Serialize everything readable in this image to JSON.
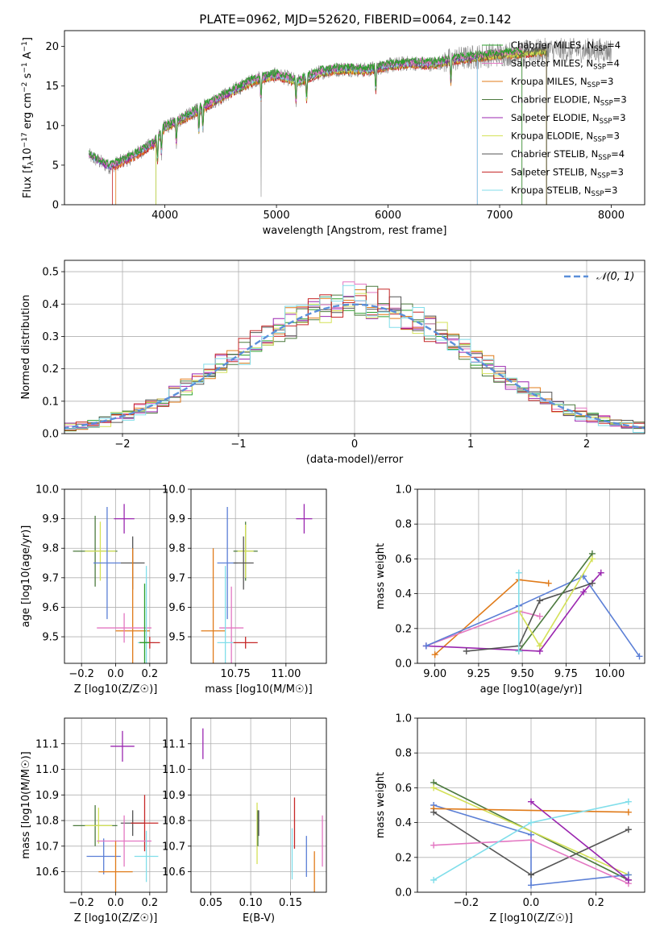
{
  "figure_title": "PLATE=0962, MJD=52620, FIBERID=0064, z=0.142",
  "colors": {
    "Chabrier_MILES": "#2ca02c",
    "Salpeter_MILES": "#e377c2",
    "Kroupa_MILES": "#e07b1a",
    "Chabrier_ELODIE": "#4c7a3e",
    "Salpeter_ELODIE": "#9b27b0",
    "Kroupa_ELODIE": "#d4e157",
    "Chabrier_STELIB": "#555555",
    "Salpeter_STELIB": "#c62828",
    "Kroupa_STELIB": "#80deea",
    "normal": "#5b8fd9",
    "mass_blue": "#5b7fd6"
  },
  "chart_data": [
    {
      "type": "line",
      "id": "spectrum",
      "xlabel": "wavelength [Angstrom, rest frame]",
      "ylabel": "Flux [f_λ 10^-17 erg cm^-2 s^-1 A^-1]",
      "xlim": [
        3100,
        8300
      ],
      "ylim": [
        0,
        22
      ],
      "xticks": [
        4000,
        5000,
        6000,
        7000,
        8000
      ],
      "yticks": [
        0,
        5,
        10,
        15,
        20
      ],
      "legend_position": "top-right",
      "legend": [
        {
          "label": "Chabrier MILES, N",
          "sub": "SSP",
          "suffix": "=4",
          "color_key": "Chabrier_MILES"
        },
        {
          "label": "Salpeter MILES, N",
          "sub": "SSP",
          "suffix": "=4",
          "color_key": "Salpeter_MILES"
        },
        {
          "label": "Kroupa MILES, N",
          "sub": "SSP",
          "suffix": "=3",
          "color_key": "Kroupa_MILES"
        },
        {
          "label": "Chabrier ELODIE, N",
          "sub": "SSP",
          "suffix": "=3",
          "color_key": "Chabrier_ELODIE"
        },
        {
          "label": "Salpeter ELODIE, N",
          "sub": "SSP",
          "suffix": "=3",
          "color_key": "Salpeter_ELODIE"
        },
        {
          "label": "Kroupa ELODIE, N",
          "sub": "SSP",
          "suffix": "=3",
          "color_key": "Kroupa_ELODIE"
        },
        {
          "label": "Chabrier STELIB, N",
          "sub": "SSP",
          "suffix": "=4",
          "color_key": "Chabrier_STELIB"
        },
        {
          "label": "Salpeter STELIB, N",
          "sub": "SSP",
          "suffix": "=3",
          "color_key": "Salpeter_STELIB"
        },
        {
          "label": "Kroupa STELIB, N",
          "sub": "SSP",
          "suffix": "=3",
          "color_key": "Kroupa_STELIB"
        }
      ],
      "continuum": {
        "x": [
          3320,
          3500,
          3700,
          3900,
          4000,
          4200,
          4400,
          4600,
          4800,
          5000,
          5200,
          5400,
          5600,
          5800,
          6000,
          6200,
          6400,
          6600,
          6800,
          7000,
          7200,
          7420
        ],
        "y": [
          6.2,
          4.8,
          6.0,
          7.8,
          9.8,
          11.2,
          12.8,
          14.3,
          15.8,
          16.4,
          15.6,
          16.8,
          17.2,
          17.0,
          17.6,
          17.9,
          17.8,
          18.4,
          18.7,
          19.0,
          19.2,
          19.5
        ]
      },
      "absorption_lines": [
        3934,
        3969,
        4102,
        4304,
        4340,
        4861,
        5175,
        5270,
        5890,
        6563
      ],
      "series_ranges": [
        {
          "color_key": "Salpeter_STELIB",
          "x_end": 7420,
          "drop_start": 3530
        },
        {
          "color_key": "Kroupa_MILES",
          "x_end": 7420,
          "drop_start": 3560
        },
        {
          "color_key": "Chabrier_ELODIE",
          "x_end": 7420,
          "drop_start": 3920
        },
        {
          "color_key": "Kroupa_ELODIE",
          "x_end": 7420,
          "drop_start": 3920
        },
        {
          "color_key": "Salpeter_ELODIE",
          "x_end": 6800
        },
        {
          "color_key": "Kroupa_STELIB",
          "x_end": 6800
        },
        {
          "color_key": "Chabrier_STELIB",
          "x_end": 7420
        },
        {
          "color_key": "Salpeter_MILES",
          "x_end": 7200
        },
        {
          "color_key": "Chabrier_MILES",
          "x_end": 7200
        }
      ]
    },
    {
      "type": "histogram",
      "id": "residuals",
      "xlabel": "(data-model)/error",
      "ylabel": "Normed distribution",
      "xlim": [
        -2.5,
        2.5
      ],
      "ylim": [
        0,
        0.535
      ],
      "xticks": [
        -2,
        -1,
        0,
        1,
        2
      ],
      "yticks": [
        0.0,
        0.1,
        0.2,
        0.3,
        0.4,
        0.5
      ],
      "grid": true,
      "legend_position": "top-right",
      "legend_label": "𝒩(0, 1)",
      "bin_width": 0.1
    },
    {
      "type": "scatter",
      "id": "age_vs_Z",
      "xlabel": "Z [log10(Z/Z☉)]",
      "ylabel": "age [log10(age/yr)]",
      "xlim": [
        -0.3,
        0.3
      ],
      "ylim": [
        9.41,
        10.0
      ],
      "xticks": [
        -0.2,
        0.0,
        0.2
      ],
      "yticks": [
        9.5,
        9.6,
        9.7,
        9.8,
        9.9,
        10.0
      ],
      "grid": true,
      "points": [
        {
          "color_key": "Chabrier_ELODIE",
          "x": -0.12,
          "xerr": 0.13,
          "y": 9.79,
          "yerr": 0.12
        },
        {
          "color_key": "Kroupa_ELODIE",
          "x": -0.09,
          "xerr": 0.09,
          "y": 9.79,
          "yerr": 0.1
        },
        {
          "color_key": "mass_blue",
          "x": -0.05,
          "xerr": 0.08,
          "y": 9.75,
          "yerr": 0.19
        },
        {
          "color_key": "Salpeter_ELODIE",
          "x": 0.05,
          "xerr": 0.06,
          "y": 9.9,
          "yerr": 0.05
        },
        {
          "color_key": "Chabrier_STELIB",
          "x": 0.1,
          "xerr": 0.07,
          "y": 9.75,
          "yerr": 0.09
        },
        {
          "color_key": "Kroupa_MILES",
          "x": 0.1,
          "xerr": 0.1,
          "y": 9.52,
          "yerr": 0.28
        },
        {
          "color_key": "Salpeter_MILES",
          "x": 0.05,
          "xerr": 0.16,
          "y": 9.53,
          "yerr": 0.05
        },
        {
          "color_key": "Kroupa_STELIB",
          "x": 0.18,
          "xerr": 0.05,
          "y": 9.48,
          "yerr": 0.26
        },
        {
          "color_key": "Salpeter_STELIB",
          "x": 0.2,
          "xerr": 0.06,
          "y": 9.48,
          "yerr": 0.02
        },
        {
          "color_key": "Chabrier_MILES",
          "x": 0.17,
          "xerr": 0.03,
          "y": 9.48,
          "yerr": 0.2
        }
      ]
    },
    {
      "type": "scatter",
      "id": "age_vs_mass",
      "xlabel": "mass [log10(M/M☉)]",
      "ylabel": "",
      "xlim": [
        10.53,
        11.2
      ],
      "ylim": [
        9.41,
        10.0
      ],
      "xticks": [
        10.75,
        11.0
      ],
      "yticks": [
        9.5,
        9.6,
        9.7,
        9.8,
        9.9,
        10.0
      ],
      "grid": true,
      "points": [
        {
          "color_key": "Chabrier_ELODIE",
          "x": 10.8,
          "xerr": 0.06,
          "y": 9.79,
          "yerr": 0.1
        },
        {
          "color_key": "Kroupa_ELODIE",
          "x": 10.8,
          "xerr": 0.04,
          "y": 9.79,
          "yerr": 0.09
        },
        {
          "color_key": "mass_blue",
          "x": 10.71,
          "xerr": 0.05,
          "y": 9.75,
          "yerr": 0.19
        },
        {
          "color_key": "Chabrier_STELIB",
          "x": 10.79,
          "xerr": 0.05,
          "y": 9.75,
          "yerr": 0.09
        },
        {
          "color_key": "Salpeter_ELODIE",
          "x": 11.09,
          "xerr": 0.04,
          "y": 9.9,
          "yerr": 0.05
        },
        {
          "color_key": "Kroupa_MILES",
          "x": 10.64,
          "xerr": 0.06,
          "y": 9.52,
          "yerr": 0.28
        },
        {
          "color_key": "Salpeter_MILES",
          "x": 10.73,
          "xerr": 0.06,
          "y": 9.53,
          "yerr": 0.14
        },
        {
          "color_key": "Kroupa_STELIB",
          "x": 10.7,
          "xerr": 0.04,
          "y": 9.48,
          "yerr": 0.26
        },
        {
          "color_key": "Salpeter_STELIB",
          "x": 10.8,
          "xerr": 0.06,
          "y": 9.48,
          "yerr": 0.02
        }
      ]
    },
    {
      "type": "line",
      "id": "weight_vs_age",
      "xlabel": "age [log10(age/yr)]",
      "ylabel": "mass weight",
      "xlim": [
        8.9,
        10.2
      ],
      "ylim": [
        0,
        1.0
      ],
      "xticks": [
        9.0,
        9.25,
        9.5,
        9.75,
        10.0
      ],
      "yticks": [
        0.0,
        0.2,
        0.4,
        0.6,
        0.8,
        1.0
      ],
      "grid": true,
      "series": [
        {
          "color_key": "Kroupa_MILES",
          "x": [
            9.0,
            9.48,
            9.65
          ],
          "y": [
            0.05,
            0.48,
            0.46
          ]
        },
        {
          "color_key": "Salpeter_MILES",
          "x": [
            8.95,
            9.48,
            9.6
          ],
          "y": [
            0.1,
            0.3,
            0.27
          ]
        },
        {
          "color_key": "Salpeter_ELODIE",
          "x": [
            8.95,
            9.6,
            9.85,
            9.95
          ],
          "y": [
            0.1,
            0.07,
            0.41,
            0.52
          ]
        },
        {
          "color_key": "mass_blue",
          "x": [
            8.95,
            9.48,
            9.85,
            10.17
          ],
          "y": [
            0.1,
            0.33,
            0.5,
            0.04
          ]
        },
        {
          "color_key": "Chabrier_STELIB",
          "x": [
            9.18,
            9.48,
            9.6,
            9.9
          ],
          "y": [
            0.07,
            0.1,
            0.36,
            0.46
          ]
        },
        {
          "color_key": "Chabrier_ELODIE",
          "x": [
            9.48,
            9.9
          ],
          "y": [
            0.07,
            0.63
          ]
        },
        {
          "color_key": "Kroupa_ELODIE",
          "x": [
            9.48,
            9.6,
            9.9
          ],
          "y": [
            0.3,
            0.1,
            0.6
          ]
        },
        {
          "color_key": "Kroupa_STELIB",
          "x": [
            9.48,
            9.48
          ],
          "y": [
            0.07,
            0.52
          ]
        }
      ]
    },
    {
      "type": "scatter",
      "id": "mass_vs_Z",
      "xlabel": "Z [log10(Z/Z☉)]",
      "ylabel": "mass [log10(M/M☉)]",
      "xlim": [
        -0.3,
        0.3
      ],
      "ylim": [
        10.52,
        11.2
      ],
      "xticks": [
        -0.2,
        0.0,
        0.2
      ],
      "yticks": [
        10.6,
        10.7,
        10.8,
        10.9,
        11.0,
        11.1
      ],
      "grid": true,
      "points": [
        {
          "color_key": "Chabrier_ELODIE",
          "x": -0.12,
          "xerr": 0.13,
          "y": 10.78,
          "yerr": 0.08
        },
        {
          "color_key": "Kroupa_ELODIE",
          "x": -0.1,
          "xerr": 0.08,
          "y": 10.78,
          "yerr": 0.07
        },
        {
          "color_key": "mass_blue",
          "x": -0.07,
          "xerr": 0.1,
          "y": 10.66,
          "yerr": 0.07
        },
        {
          "color_key": "Salpeter_ELODIE",
          "x": 0.04,
          "xerr": 0.07,
          "y": 11.09,
          "yerr": 0.06
        },
        {
          "color_key": "Chabrier_STELIB",
          "x": 0.1,
          "xerr": 0.07,
          "y": 10.79,
          "yerr": 0.05
        },
        {
          "color_key": "Salpeter_STELIB",
          "x": 0.17,
          "xerr": 0.08,
          "y": 10.79,
          "yerr": 0.11
        },
        {
          "color_key": "Salpeter_MILES",
          "x": 0.05,
          "xerr": 0.16,
          "y": 10.72,
          "yerr": 0.1
        },
        {
          "color_key": "Kroupa_STELIB",
          "x": 0.18,
          "xerr": 0.07,
          "y": 10.66,
          "yerr": 0.1
        },
        {
          "color_key": "Kroupa_MILES",
          "x": 0.0,
          "xerr": 0.1,
          "y": 10.6,
          "yerr": 0.12
        }
      ]
    },
    {
      "type": "scatter",
      "id": "mass_vs_ebv",
      "xlabel": "E(B-V)",
      "ylabel": "",
      "xlim": [
        0.025,
        0.195
      ],
      "ylim": [
        10.52,
        11.2
      ],
      "xticks": [
        0.05,
        0.1,
        0.15
      ],
      "yticks": [
        10.6,
        10.7,
        10.8,
        10.9,
        11.0,
        11.1
      ],
      "grid": true,
      "points": [
        {
          "color_key": "Salpeter_ELODIE",
          "x": 0.04,
          "y": 11.1,
          "yerr": 0.06
        },
        {
          "color_key": "Kroupa_ELODIE",
          "x": 0.108,
          "y": 10.75,
          "yerr": 0.12
        },
        {
          "color_key": "Chabrier_ELODIE",
          "x": 0.109,
          "y": 10.77,
          "yerr": 0.07
        },
        {
          "color_key": "Chabrier_STELIB",
          "x": 0.11,
          "y": 10.79,
          "yerr": 0.05
        },
        {
          "color_key": "Kroupa_STELIB",
          "x": 0.152,
          "y": 10.67,
          "yerr": 0.1
        },
        {
          "color_key": "Salpeter_STELIB",
          "x": 0.155,
          "y": 10.79,
          "yerr": 0.1
        },
        {
          "color_key": "mass_blue",
          "x": 0.17,
          "y": 10.66,
          "yerr": 0.08
        },
        {
          "color_key": "Kroupa_MILES",
          "x": 0.18,
          "y": 10.6,
          "yerr": 0.08
        },
        {
          "color_key": "Salpeter_MILES",
          "x": 0.19,
          "y": 10.72,
          "yerr": 0.1
        }
      ]
    },
    {
      "type": "line",
      "id": "weight_vs_Z",
      "xlabel": "Z [log10(Z/Z☉)]",
      "ylabel": "mass weight",
      "xlim": [
        -0.35,
        0.35
      ],
      "ylim": [
        0,
        1.0
      ],
      "xticks": [
        -0.2,
        0.0,
        0.2
      ],
      "yticks": [
        0.0,
        0.2,
        0.4,
        0.6,
        0.8,
        1.0
      ],
      "grid": true,
      "series": [
        {
          "color_key": "Chabrier_ELODIE",
          "x": [
            -0.3,
            0.3
          ],
          "y": [
            0.63,
            0.07
          ]
        },
        {
          "color_key": "Kroupa_ELODIE",
          "x": [
            -0.3,
            0.3
          ],
          "y": [
            0.6,
            0.1
          ]
        },
        {
          "color_key": "mass_blue",
          "x": [
            -0.3,
            0.0,
            0.0,
            0.3
          ],
          "y": [
            0.5,
            0.33,
            0.04,
            0.1
          ]
        },
        {
          "color_key": "Kroupa_MILES",
          "x": [
            -0.3,
            0.3
          ],
          "y": [
            0.48,
            0.46
          ]
        },
        {
          "color_key": "Chabrier_STELIB",
          "x": [
            -0.3,
            0.0,
            0.3
          ],
          "y": [
            0.46,
            0.1,
            0.36
          ]
        },
        {
          "color_key": "Salpeter_MILES",
          "x": [
            -0.3,
            0.0,
            0.3
          ],
          "y": [
            0.27,
            0.3,
            0.05
          ]
        },
        {
          "color_key": "Salpeter_ELODIE",
          "x": [
            0.0,
            0.3
          ],
          "y": [
            0.52,
            0.07
          ]
        },
        {
          "color_key": "Kroupa_STELIB",
          "x": [
            -0.3,
            0.0,
            0.3
          ],
          "y": [
            0.07,
            0.4,
            0.52
          ]
        }
      ]
    }
  ]
}
